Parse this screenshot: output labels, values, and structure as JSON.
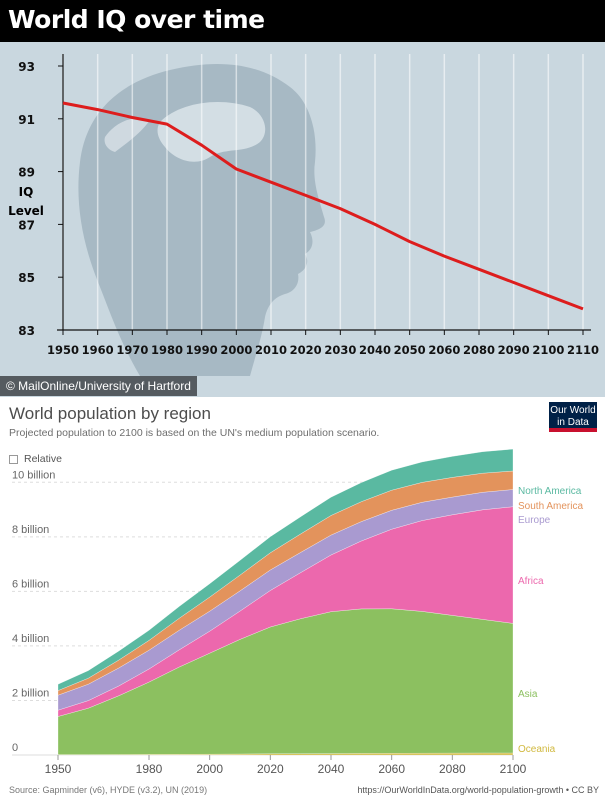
{
  "top_chart": {
    "title": "World IQ over time",
    "ylabel_line1": "IQ",
    "ylabel_line2": "Level",
    "credit": "© MailOnline/University of Hartford",
    "line_color": "#dd1d1d",
    "y_ticks": [
      "93",
      "91",
      "89",
      "87",
      "85",
      "83"
    ],
    "x_ticks": [
      "1950",
      "1960",
      "1970",
      "1980",
      "1990",
      "2000",
      "2010",
      "2020",
      "2030",
      "2040",
      "2050",
      "2060",
      "2080",
      "2090",
      "2100",
      "2110"
    ]
  },
  "bottom_chart": {
    "title": "World population by region",
    "subtitle": "Projected population to 2100 is based on the UN's medium population scenario.",
    "logo_line1": "Our World",
    "logo_line2": "in Data",
    "relative_label": "Relative",
    "y_ticks": [
      "0",
      "2 billion",
      "4 billion",
      "6 billion",
      "8 billion",
      "10 billion"
    ],
    "x_ticks": [
      "1950",
      "1980",
      "2000",
      "2020",
      "2040",
      "2060",
      "2080",
      "2100"
    ],
    "source": "Source: Gapminder (v6), HYDE (v3.2), UN (2019)",
    "url": "https://OurWorldInData.org/world-population-growth • CC BY"
  },
  "chart_data": [
    {
      "type": "line",
      "title": "World IQ over time",
      "ylabel": "IQ Level",
      "xlabel": "",
      "ylim": [
        83,
        93
      ],
      "x": [
        1950,
        1960,
        1970,
        1980,
        1990,
        2000,
        2010,
        2020,
        2030,
        2040,
        2050,
        2060,
        2080,
        2090,
        2100,
        2110
      ],
      "values": [
        91.6,
        91.35,
        91.05,
        90.8,
        90.0,
        89.1,
        88.6,
        88.1,
        87.6,
        87.0,
        86.35,
        85.8,
        85.3,
        84.8,
        84.3,
        83.8
      ],
      "grid": true
    },
    {
      "type": "area",
      "stacked": true,
      "title": "World population by region",
      "subtitle": "Projected population to 2100 is based on the UN's medium population scenario.",
      "xlabel": "",
      "ylabel": "",
      "ylim": [
        0,
        11
      ],
      "x": [
        1950,
        1960,
        1970,
        1980,
        1990,
        2000,
        2010,
        2020,
        2030,
        2040,
        2050,
        2060,
        2070,
        2080,
        2090,
        2100
      ],
      "series": [
        {
          "name": "Oceania",
          "color": "#d1b93f",
          "values": [
            0.013,
            0.016,
            0.019,
            0.023,
            0.027,
            0.031,
            0.037,
            0.043,
            0.048,
            0.053,
            0.057,
            0.061,
            0.065,
            0.068,
            0.072,
            0.075
          ]
        },
        {
          "name": "Asia",
          "color": "#8cc060",
          "values": [
            1.4,
            1.7,
            2.15,
            2.65,
            3.2,
            3.7,
            4.2,
            4.65,
            4.95,
            5.2,
            5.3,
            5.3,
            5.2,
            5.05,
            4.9,
            4.75
          ]
        },
        {
          "name": "Africa",
          "color": "#ec68ad",
          "values": [
            0.23,
            0.28,
            0.36,
            0.48,
            0.63,
            0.81,
            1.04,
            1.34,
            1.69,
            2.08,
            2.49,
            2.92,
            3.33,
            3.69,
            4.02,
            4.28
          ]
        },
        {
          "name": "Europe",
          "color": "#a99ad0",
          "values": [
            0.55,
            0.6,
            0.66,
            0.69,
            0.72,
            0.73,
            0.74,
            0.75,
            0.74,
            0.73,
            0.71,
            0.69,
            0.67,
            0.65,
            0.64,
            0.63
          ]
        },
        {
          "name": "South America",
          "color": "#e3935c",
          "values": [
            0.17,
            0.22,
            0.29,
            0.36,
            0.44,
            0.52,
            0.58,
            0.63,
            0.68,
            0.72,
            0.73,
            0.74,
            0.73,
            0.72,
            0.7,
            0.68
          ]
        },
        {
          "name": "North America",
          "color": "#5ab9a1",
          "values": [
            0.23,
            0.28,
            0.33,
            0.37,
            0.43,
            0.49,
            0.54,
            0.59,
            0.63,
            0.67,
            0.7,
            0.73,
            0.75,
            0.77,
            0.79,
            0.8
          ]
        }
      ],
      "legend": "right, at series end"
    }
  ]
}
